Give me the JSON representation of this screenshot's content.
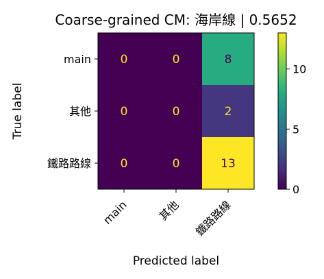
{
  "chart_data": {
    "type": "heatmap",
    "title": "Coarse-grained CM: 海岸線 | 0.5652",
    "xlabel": "Predicted label",
    "ylabel": "True label",
    "x_categories": [
      "main",
      "其他",
      "鐵路路線"
    ],
    "y_categories": [
      "main",
      "其他",
      "鐵路路線"
    ],
    "values": [
      [
        0,
        0,
        8
      ],
      [
        0,
        0,
        2
      ],
      [
        0,
        0,
        13
      ]
    ],
    "colormap": "viridis",
    "colorbar": {
      "min": 0,
      "max": 13,
      "ticks": [
        0,
        5,
        10
      ]
    },
    "grid": false
  }
}
